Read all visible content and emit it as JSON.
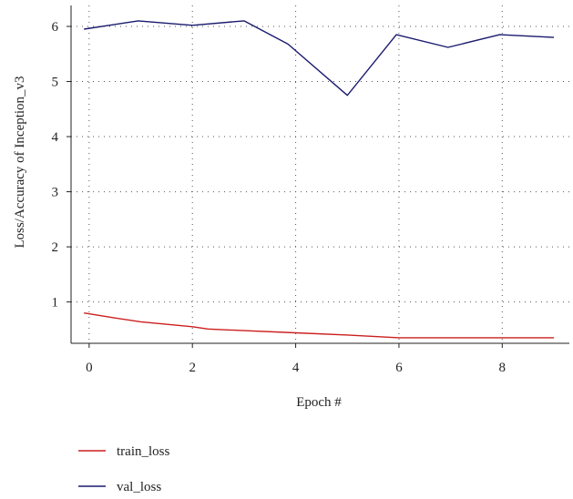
{
  "chart_data": {
    "type": "line",
    "title": "",
    "xlabel": "Epoch #",
    "ylabel": "Loss/Accuracy of Inception_v3",
    "xlim": [
      -0.35,
      9.3
    ],
    "ylim": [
      0.25,
      6.38
    ],
    "xticks": [
      0,
      2,
      4,
      6,
      8
    ],
    "yticks": [
      1,
      2,
      3,
      4,
      5,
      6
    ],
    "grid": true,
    "legend_position": "bottom-left",
    "series": [
      {
        "name": "train_loss",
        "color": "#cc1f1f",
        "x": [
          -0.1,
          0.5,
          1,
          2,
          2.3,
          3,
          4,
          5,
          6,
          7,
          8,
          9
        ],
        "y": [
          0.8,
          0.71,
          0.64,
          0.55,
          0.51,
          0.48,
          0.44,
          0.4,
          0.35,
          0.35,
          0.35,
          0.35
        ]
      },
      {
        "name": "val_loss",
        "color": "#1a1a6e",
        "x": [
          -0.1,
          0.95,
          2,
          3,
          3.85,
          5,
          5.95,
          6.95,
          7.95,
          9
        ],
        "y": [
          5.95,
          6.1,
          6.02,
          6.1,
          5.68,
          4.75,
          5.85,
          5.62,
          5.85,
          5.8
        ]
      }
    ]
  }
}
